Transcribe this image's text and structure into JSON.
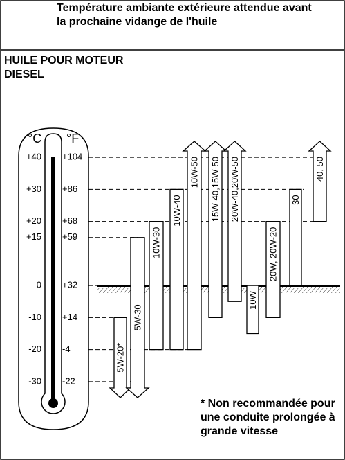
{
  "header": "Température ambiante extérieure attendue avant la prochaine vidange de l'huile",
  "chart_data": {
    "type": "range-bar",
    "title": "HUILE POUR MOTEUR DIESEL",
    "ylabel": "°C",
    "y2label": "°F",
    "categories": [
      "5W-20*",
      "5W-30",
      "10W-30",
      "10W-40",
      "10W-50",
      "15W-40,15W-50",
      "20W-40,20W-50",
      "10W",
      "20W, 20W-20",
      "30",
      "40, 50"
    ],
    "ranges": [
      [
        null,
        -10
      ],
      [
        null,
        15
      ],
      [
        -20,
        20
      ],
      [
        -20,
        30
      ],
      [
        -20,
        null
      ],
      [
        -10,
        null
      ],
      [
        -5,
        null
      ],
      [
        -15,
        0
      ],
      [
        -10,
        20
      ],
      [
        0,
        30
      ],
      [
        20,
        null
      ]
    ],
    "color": "#ffffff",
    "ylim": [
      -35,
      45
    ],
    "yticks": [
      {
        "value": 40,
        "label": "+40"
      },
      {
        "value": 30,
        "label": "+30"
      },
      {
        "value": 20,
        "label": "+20"
      },
      {
        "value": 15,
        "label": "+15"
      },
      0,
      {
        "value": -10,
        "label": "-10"
      },
      {
        "value": -20,
        "label": "-20"
      },
      {
        "value": -30,
        "label": "-30"
      }
    ],
    "y2lim": [
      -31,
      113
    ],
    "y2ticks": [
      {
        "value": 104,
        "label": "+104"
      },
      {
        "value": 86,
        "label": "+86"
      },
      {
        "value": 68,
        "label": "+68"
      },
      {
        "value": 59,
        "label": "+59"
      },
      {
        "value": 32,
        "label": "+32"
      },
      {
        "value": 14,
        "label": "+14"
      },
      -4,
      -22
    ],
    "grid": true,
    "note": "* Non recommandée pour une conduite prolongée à grande vitesse"
  }
}
